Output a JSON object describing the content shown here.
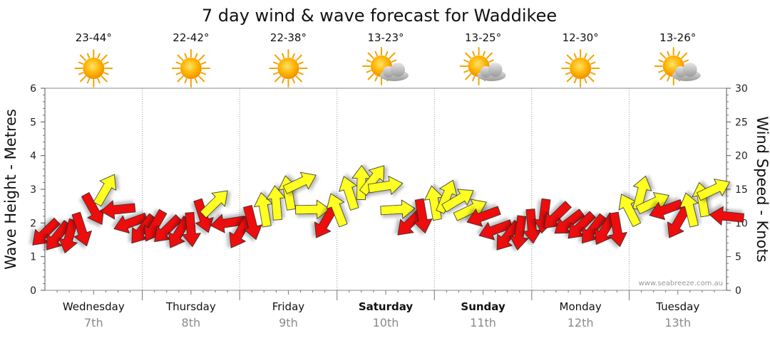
{
  "chart_data": {
    "type": "line",
    "title": "7 day wind & wave forecast for Waddikee",
    "ylabel": "Wave Height - Metres",
    "y2label": "Wind Speed - Knots",
    "ylim": [
      0,
      6
    ],
    "y2lim": [
      0,
      30
    ],
    "yticks": [
      "0",
      "1",
      "2",
      "3",
      "4",
      "5",
      "6"
    ],
    "y2ticks": [
      "0",
      "5",
      "10",
      "15",
      "20",
      "25",
      "30"
    ],
    "grid": true,
    "credit": "www.seabreeze.com.au",
    "days": [
      {
        "name": "Wednesday",
        "date": "7th",
        "temp": "23-44°",
        "weather": "sunny-icon",
        "bold": false
      },
      {
        "name": "Thursday",
        "date": "8th",
        "temp": "22-42°",
        "weather": "sunny-icon",
        "bold": false
      },
      {
        "name": "Friday",
        "date": "9th",
        "temp": "22-38°",
        "weather": "sunny-icon",
        "bold": false
      },
      {
        "name": "Saturday",
        "date": "10th",
        "temp": "13-23°",
        "weather": "partly-cloudy-icon",
        "bold": true
      },
      {
        "name": "Sunday",
        "date": "11th",
        "temp": "13-25°",
        "weather": "partly-cloudy-icon",
        "bold": true
      },
      {
        "name": "Monday",
        "date": "12th",
        "temp": "12-30°",
        "weather": "sunny-icon",
        "bold": false
      },
      {
        "name": "Tuesday",
        "date": "13th",
        "temp": "13-26°",
        "weather": "partly-cloudy-icon",
        "bold": false
      }
    ],
    "series": [
      {
        "name": "Wind Speed",
        "unit": "knots",
        "colors": {
          "strong": "#ee1111",
          "moderate": "#ffff22",
          "outline": "#222222"
        },
        "x_hours": [
          0,
          3,
          6,
          9,
          12,
          15,
          18,
          21,
          24,
          27,
          30,
          33,
          36,
          39,
          42,
          45,
          48,
          51,
          54,
          57,
          60,
          63,
          66,
          69,
          72,
          75,
          78,
          81,
          84,
          87,
          90,
          93,
          96,
          99,
          102,
          105,
          108,
          111,
          114,
          117,
          120,
          123,
          126,
          129,
          132,
          135,
          138,
          141,
          144,
          147,
          150,
          153,
          156,
          159,
          162,
          165,
          168
        ],
        "values": [
          8.5,
          8,
          8,
          9,
          12,
          15,
          12,
          10,
          9,
          9.5,
          9,
          8.5,
          9,
          11,
          13,
          10,
          8.5,
          10,
          12,
          13,
          14.5,
          16,
          12,
          10,
          12,
          14.5,
          16,
          16.5,
          15.5,
          12,
          10,
          11,
          13,
          14,
          13.5,
          12,
          11,
          9,
          8,
          8.5,
          9.5,
          11,
          11,
          10,
          9.5,
          9,
          9,
          9,
          12,
          14.5,
          13,
          12,
          10,
          12,
          13.5,
          15,
          11
        ],
        "strong": [
          true,
          true,
          true,
          true,
          true,
          false,
          true,
          true,
          true,
          true,
          true,
          true,
          true,
          true,
          false,
          true,
          true,
          true,
          false,
          false,
          false,
          false,
          false,
          true,
          false,
          false,
          false,
          false,
          false,
          false,
          true,
          true,
          false,
          false,
          false,
          false,
          true,
          true,
          true,
          true,
          true,
          true,
          true,
          true,
          true,
          true,
          true,
          true,
          false,
          false,
          false,
          true,
          true,
          false,
          false,
          false,
          true
        ]
      }
    ]
  }
}
